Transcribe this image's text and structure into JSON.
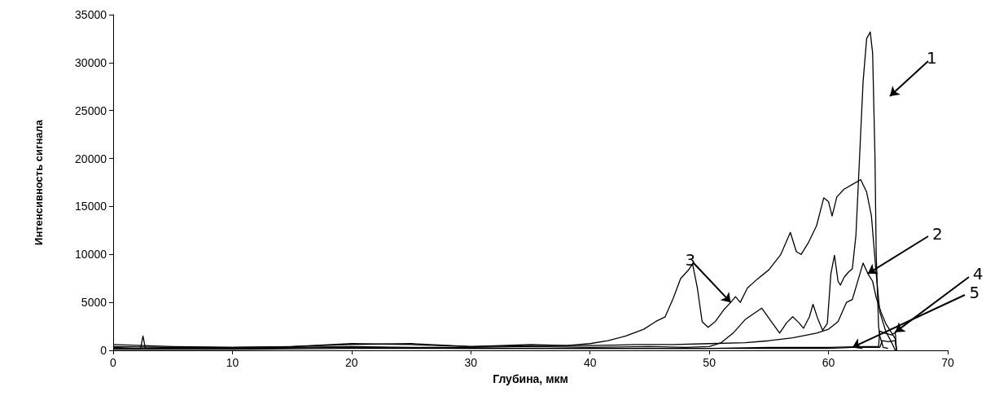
{
  "chart_data": {
    "type": "line",
    "xlabel": "Глубина, мкм",
    "ylabel": "Интенсивность сигнала",
    "xlim": [
      0,
      70
    ],
    "xticks": [
      0,
      10,
      20,
      30,
      40,
      50,
      60,
      70
    ],
    "ylim": [
      0,
      35000
    ],
    "yticks": [
      0,
      5000,
      10000,
      15000,
      20000,
      25000,
      30000,
      35000
    ],
    "series": [
      {
        "color": "#000000",
        "x": [
          0,
          2,
          5,
          10,
          15,
          20,
          25,
          30,
          35,
          40,
          45,
          48,
          50,
          51,
          52,
          53,
          54.4,
          55.2,
          55.9,
          56.5,
          57,
          57.5,
          57.9,
          58.4,
          58.7,
          59.1,
          59.5,
          59.9,
          60.2,
          60.5,
          60.8,
          61,
          61.3,
          61.7,
          62,
          62.3,
          62.6,
          62.9,
          63.2,
          63.5,
          63.7,
          63.9,
          64,
          64.2,
          64.3,
          64.6,
          65
        ],
        "values": [
          300,
          200,
          300,
          200,
          300,
          400,
          300,
          300,
          400,
          300,
          400,
          300,
          400,
          800,
          1800,
          3200,
          4400,
          3000,
          1800,
          2900,
          3500,
          2900,
          2300,
          3500,
          4800,
          3300,
          2100,
          2800,
          8000,
          9900,
          7200,
          6800,
          7600,
          8200,
          8500,
          12000,
          20000,
          28000,
          32500,
          33200,
          31000,
          20000,
          10000,
          2500,
          1500,
          300,
          200
        ]
      },
      {
        "color": "#000000",
        "x": [
          0,
          5,
          10,
          15,
          20,
          25,
          30,
          35,
          40,
          44,
          47,
          50,
          53,
          55,
          57,
          59,
          60,
          60.8,
          61.5,
          62,
          62.4,
          62.9,
          63.3,
          63.7,
          64,
          64.4,
          64.8,
          65.2,
          65.6,
          65.7
        ],
        "values": [
          400,
          300,
          300,
          400,
          700,
          600,
          400,
          500,
          500,
          600,
          600,
          700,
          800,
          1000,
          1300,
          1800,
          2200,
          3000,
          5000,
          5300,
          7000,
          9100,
          8000,
          7200,
          5500,
          4000,
          2800,
          2000,
          1200,
          0
        ]
      },
      {
        "color": "#000000",
        "x": [
          0,
          5,
          10,
          15,
          20,
          25,
          30,
          35,
          38,
          40,
          41.5,
          43,
          44.5,
          45.5,
          46.3,
          47,
          47.6,
          48.2,
          48.6,
          49,
          49.4,
          49.9,
          50.5,
          51.2,
          51.8,
          52.2,
          52.6,
          53.2,
          54,
          55,
          56,
          56.8,
          57.3,
          57.7,
          58.3,
          59,
          59.6,
          60,
          60.3,
          60.7,
          61.3,
          62,
          62.7,
          63.2,
          63.6,
          64,
          64.3,
          64.8,
          65.3,
          65.6
        ],
        "values": [
          600,
          400,
          300,
          400,
          600,
          700,
          400,
          600,
          500,
          700,
          1000,
          1500,
          2200,
          3000,
          3500,
          5500,
          7500,
          8300,
          9000,
          6500,
          3000,
          2400,
          3000,
          4200,
          5000,
          5600,
          5000,
          6500,
          7400,
          8400,
          10000,
          12300,
          10300,
          10000,
          11200,
          13000,
          15900,
          15500,
          14000,
          16000,
          16800,
          17300,
          17800,
          16500,
          14000,
          8000,
          4000,
          2000,
          800,
          0
        ]
      },
      {
        "color": "#000000",
        "x": [
          0,
          2.3,
          2.5,
          2.7,
          10,
          20,
          30,
          40,
          50,
          55,
          60,
          63,
          64.2,
          64.3,
          64.7,
          65.3,
          65.6,
          65.7
        ],
        "values": [
          200,
          200,
          1500,
          200,
          200,
          300,
          200,
          200,
          200,
          300,
          300,
          400,
          400,
          2000,
          1800,
          1600,
          1900,
          0
        ]
      },
      {
        "color": "#000000",
        "x": [
          0,
          10,
          20,
          30,
          40,
          50,
          60,
          62,
          64.3,
          64.5,
          65,
          65.6,
          65.7
        ],
        "values": [
          100,
          100,
          200,
          200,
          200,
          200,
          200,
          300,
          300,
          1000,
          900,
          1000,
          0
        ]
      }
    ],
    "annotations": [
      "1",
      {
        "text": "2",
        "x": 63.3,
        "y": 8000
      },
      {
        "text": "3",
        "x": 51.8,
        "y": 5000
      },
      {
        "text": "4",
        "x": 65.6,
        "y": 1900
      },
      {
        "text": "5",
        "x": 62,
        "y": 300
      }
    ]
  }
}
